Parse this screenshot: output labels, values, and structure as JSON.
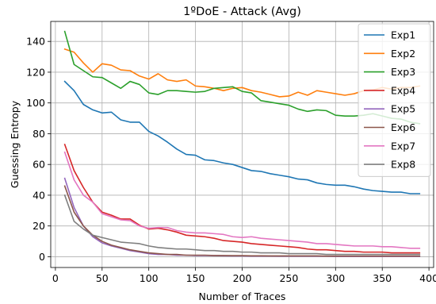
{
  "chart_data": {
    "type": "line",
    "title": "1ºDoE - Attack (Avg)",
    "xlabel": "Number of Traces",
    "ylabel": "Guessing Entropy",
    "xlim": [
      -5,
      405
    ],
    "ylim": [
      -7,
      153
    ],
    "xticks": [
      0,
      50,
      100,
      150,
      200,
      250,
      300,
      350,
      400
    ],
    "yticks": [
      0,
      20,
      40,
      60,
      80,
      100,
      120,
      140
    ],
    "grid": true,
    "legend_position": "top-right",
    "x": [
      10,
      20,
      30,
      40,
      50,
      60,
      70,
      80,
      90,
      100,
      110,
      120,
      130,
      140,
      150,
      160,
      170,
      180,
      190,
      200,
      210,
      220,
      230,
      240,
      250,
      260,
      270,
      280,
      290,
      300,
      310,
      320,
      330,
      340,
      350,
      360,
      370,
      380,
      390
    ],
    "series": [
      {
        "name": "Exp1",
        "color": "#1f77b4",
        "values": [
          114,
          108,
          99,
          95.5,
          93.5,
          94,
          89,
          87.5,
          87.5,
          81.5,
          78.5,
          74.5,
          70,
          66.5,
          66,
          63,
          62.5,
          61,
          60,
          58,
          56,
          55.5,
          54,
          53,
          52,
          50.5,
          50,
          48,
          47,
          46.5,
          46.5,
          45.5,
          44,
          43,
          42.5,
          42,
          42,
          41,
          41
        ]
      },
      {
        "name": "Exp2",
        "color": "#ff7f0e",
        "values": [
          135,
          133,
          126,
          120,
          125.5,
          124.5,
          121.5,
          121,
          117.5,
          115.5,
          119,
          115,
          114,
          115,
          111,
          110.5,
          109.5,
          108,
          109.5,
          110,
          108,
          107,
          105.5,
          104,
          104.5,
          107,
          105,
          108,
          107,
          106,
          105,
          106,
          108,
          108.5,
          110,
          109,
          110,
          110,
          111
        ]
      },
      {
        "name": "Exp3",
        "color": "#2ca02c",
        "values": [
          146.5,
          125,
          121,
          117,
          116.5,
          113,
          109.5,
          114,
          112,
          106.5,
          105.5,
          108,
          108,
          107.5,
          107,
          107.5,
          109.5,
          110,
          110.5,
          107.5,
          106.5,
          101.5,
          100.5,
          99.5,
          98.5,
          96,
          94.5,
          95.5,
          95,
          92,
          91.5,
          91.5,
          92,
          93,
          91.5,
          90,
          89.5,
          87.5,
          86.5
        ]
      },
      {
        "name": "Exp4",
        "color": "#d62728",
        "values": [
          73,
          56,
          45,
          35.5,
          29,
          27,
          24.5,
          24.5,
          20.5,
          18,
          18.5,
          17.5,
          16,
          14,
          13.5,
          13,
          12,
          10.5,
          10,
          9.5,
          8.5,
          8,
          7.5,
          7,
          6.5,
          6,
          5,
          4.5,
          4.5,
          4,
          3.5,
          3.5,
          3,
          3,
          3,
          2.5,
          2.5,
          2.5,
          2.5
        ]
      },
      {
        "name": "Exp5",
        "color": "#9467bd",
        "values": [
          51,
          32,
          20,
          13,
          9,
          7,
          5.5,
          4,
          3,
          2,
          1.5,
          1.5,
          1,
          1,
          0.8,
          0.8,
          0.7,
          0.6,
          0.5,
          0.5,
          0.4,
          0.4,
          0.4,
          0.3,
          0.3,
          0.3,
          0.3,
          0.3,
          0.3,
          0.2,
          0.2,
          0.2,
          0.2,
          0.2,
          0.2,
          0.2,
          0.2,
          0.2,
          0.2
        ]
      },
      {
        "name": "Exp6",
        "color": "#8c564b",
        "values": [
          46,
          29,
          20,
          14,
          10,
          7.5,
          6,
          4.5,
          3.5,
          2.5,
          2,
          1.5,
          1.5,
          1,
          1,
          1,
          0.8,
          0.8,
          0.7,
          0.7,
          0.6,
          0.6,
          0.5,
          0.5,
          0.5,
          0.5,
          0.5,
          0.5,
          0.4,
          0.4,
          0.4,
          0.4,
          0.4,
          0.4,
          0.4,
          0.4,
          0.4,
          0.4,
          0.4
        ]
      },
      {
        "name": "Exp7",
        "color": "#e377c2",
        "values": [
          68,
          50,
          40,
          35.5,
          28,
          26,
          24,
          23.5,
          20,
          18.5,
          19,
          19,
          17,
          16,
          15.5,
          15.5,
          15,
          14.5,
          13,
          12.5,
          13,
          12,
          11.5,
          11,
          10.5,
          10,
          9.5,
          8.5,
          8.5,
          8,
          7.5,
          7,
          7,
          7,
          6.5,
          6.5,
          6,
          5.5,
          5.5
        ]
      },
      {
        "name": "Exp8",
        "color": "#7f7f7f",
        "values": [
          40,
          23,
          18,
          14,
          12.5,
          11,
          9.5,
          9,
          8.5,
          7,
          6,
          5.5,
          5,
          5,
          4.5,
          4,
          4,
          3.5,
          3.5,
          3,
          3,
          2.5,
          2.5,
          2.5,
          2,
          2,
          2,
          2,
          1.5,
          1.5,
          1.5,
          1.5,
          1.5,
          1.5,
          1.5,
          1.5,
          1.5,
          1.5,
          1.5
        ]
      }
    ]
  }
}
